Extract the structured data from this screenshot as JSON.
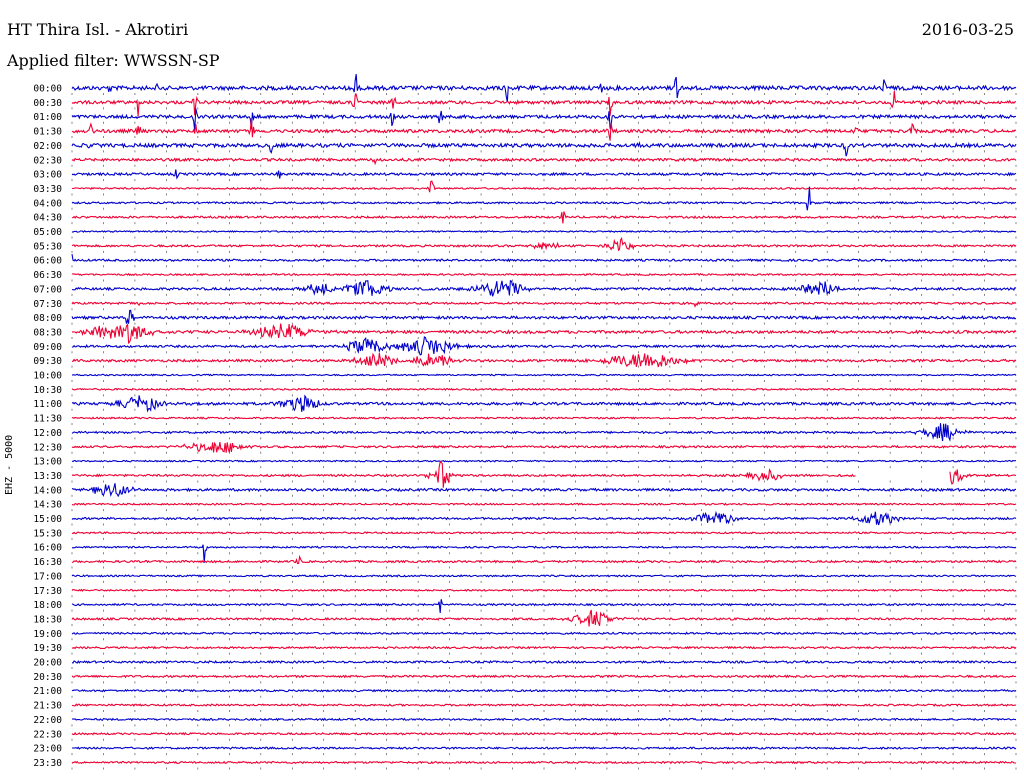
{
  "header": {
    "station": "HT Thira Isl. - Akrotiri",
    "date": "2016-03-25",
    "filter": "Applied filter: WWSSN-SP"
  },
  "axis": {
    "channel_label": "EHZ - 5000"
  },
  "colors": {
    "blue": "#0000cc",
    "red": "#ee0033",
    "tick": "#333333"
  },
  "chart_data": {
    "type": "line",
    "rows": [
      {
        "label": "00:00",
        "color": "blue",
        "noise": 2.0,
        "events": [
          {
            "x": 0.3,
            "amp": 14,
            "w": 0.002
          },
          {
            "x": 0.46,
            "amp": 15,
            "w": 0.002
          },
          {
            "x": 0.64,
            "amp": 17,
            "w": 0.002
          },
          {
            "x": 0.04,
            "amp": 5,
            "w": 0.002
          },
          {
            "x": 0.09,
            "amp": 5,
            "w": 0.002
          },
          {
            "x": 0.56,
            "amp": 6,
            "w": 0.002
          },
          {
            "x": 0.86,
            "amp": 6,
            "w": 0.002
          }
        ]
      },
      {
        "label": "00:30",
        "color": "red",
        "noise": 1.6,
        "events": [
          {
            "x": 0.07,
            "amp": 10,
            "w": 0.002
          },
          {
            "x": 0.13,
            "amp": 9,
            "w": 0.002
          },
          {
            "x": 0.3,
            "amp": 12,
            "w": 0.002
          },
          {
            "x": 0.34,
            "amp": 10,
            "w": 0.002
          },
          {
            "x": 0.57,
            "amp": 9,
            "w": 0.002
          },
          {
            "x": 0.87,
            "amp": 10,
            "w": 0.002
          }
        ]
      },
      {
        "label": "01:00",
        "color": "blue",
        "noise": 1.6,
        "events": [
          {
            "x": 0.13,
            "amp": 10,
            "w": 0.002
          },
          {
            "x": 0.19,
            "amp": 12,
            "w": 0.002
          },
          {
            "x": 0.34,
            "amp": 11,
            "w": 0.002
          },
          {
            "x": 0.39,
            "amp": 11,
            "w": 0.002
          },
          {
            "x": 0.57,
            "amp": 9,
            "w": 0.002
          }
        ]
      },
      {
        "label": "01:30",
        "color": "red",
        "noise": 1.6,
        "events": [
          {
            "x": 0.02,
            "amp": 7,
            "w": 0.002
          },
          {
            "x": 0.07,
            "amp": 8,
            "w": 0.002
          },
          {
            "x": 0.13,
            "amp": 8,
            "w": 0.002
          },
          {
            "x": 0.19,
            "amp": 10,
            "w": 0.002
          },
          {
            "x": 0.57,
            "amp": 9,
            "w": 0.002
          },
          {
            "x": 0.83,
            "amp": 9,
            "w": 0.002
          },
          {
            "x": 0.89,
            "amp": 7,
            "w": 0.002
          }
        ]
      },
      {
        "label": "02:00",
        "color": "blue",
        "noise": 1.8,
        "events": [
          {
            "x": 0.02,
            "amp": 9,
            "w": 0.002
          },
          {
            "x": 0.21,
            "amp": 9,
            "w": 0.002
          },
          {
            "x": 0.6,
            "amp": 5,
            "w": 0.002
          },
          {
            "x": 0.82,
            "amp": 8,
            "w": 0.002
          }
        ]
      },
      {
        "label": "02:30",
        "color": "red",
        "noise": 1.3,
        "events": [
          {
            "x": 0.32,
            "amp": 5,
            "w": 0.002
          }
        ]
      },
      {
        "label": "03:00",
        "color": "blue",
        "noise": 1.2,
        "events": [
          {
            "x": 0.11,
            "amp": 4,
            "w": 0.002
          },
          {
            "x": 0.22,
            "amp": 6,
            "w": 0.002
          }
        ]
      },
      {
        "label": "03:30",
        "color": "red",
        "noise": 0.8,
        "events": [
          {
            "x": 0.38,
            "amp": 6,
            "w": 0.003
          }
        ]
      },
      {
        "label": "04:00",
        "color": "blue",
        "noise": 0.9,
        "events": [
          {
            "x": 0.78,
            "amp": 16,
            "w": 0.002
          }
        ]
      },
      {
        "label": "04:30",
        "color": "red",
        "noise": 1.0,
        "events": [
          {
            "x": 0.52,
            "amp": 7,
            "w": 0.002
          }
        ]
      },
      {
        "label": "05:00",
        "color": "blue",
        "noise": 0.7,
        "events": []
      },
      {
        "label": "05:30",
        "color": "red",
        "noise": 1.0,
        "events": [
          {
            "x": 0.5,
            "amp": 3,
            "w": 0.015
          },
          {
            "x": 0.58,
            "amp": 7,
            "w": 0.012
          }
        ]
      },
      {
        "label": "06:00",
        "color": "blue",
        "noise": 1.0,
        "events": [
          {
            "x": 0.0,
            "amp": 5,
            "w": 0.002
          }
        ]
      },
      {
        "label": "06:30",
        "color": "red",
        "noise": 0.8,
        "events": []
      },
      {
        "label": "07:00",
        "color": "blue",
        "noise": 1.2,
        "events": [
          {
            "x": 0.26,
            "amp": 5,
            "w": 0.015
          },
          {
            "x": 0.31,
            "amp": 7,
            "w": 0.02
          },
          {
            "x": 0.45,
            "amp": 8,
            "w": 0.025
          },
          {
            "x": 0.79,
            "amp": 6,
            "w": 0.02
          }
        ]
      },
      {
        "label": "07:30",
        "color": "red",
        "noise": 1.0,
        "events": [
          {
            "x": 0.07,
            "amp": 6,
            "w": 0.002
          },
          {
            "x": 0.66,
            "amp": 4,
            "w": 0.002
          }
        ]
      },
      {
        "label": "08:00",
        "color": "blue",
        "noise": 1.3,
        "events": [
          {
            "x": 0.06,
            "amp": 12,
            "w": 0.004
          }
        ]
      },
      {
        "label": "08:30",
        "color": "red",
        "noise": 1.4,
        "events": [
          {
            "x": 0.03,
            "amp": 5,
            "w": 0.015
          },
          {
            "x": 0.06,
            "amp": 8,
            "w": 0.02
          },
          {
            "x": 0.22,
            "amp": 6,
            "w": 0.03
          }
        ]
      },
      {
        "label": "09:00",
        "color": "blue",
        "noise": 1.1,
        "events": [
          {
            "x": 0.31,
            "amp": 7,
            "w": 0.02
          },
          {
            "x": 0.37,
            "amp": 8,
            "w": 0.03
          }
        ]
      },
      {
        "label": "09:30",
        "color": "red",
        "noise": 1.2,
        "events": [
          {
            "x": 0.32,
            "amp": 6,
            "w": 0.02
          },
          {
            "x": 0.38,
            "amp": 7,
            "w": 0.02
          },
          {
            "x": 0.6,
            "amp": 7,
            "w": 0.04
          }
        ]
      },
      {
        "label": "10:00",
        "color": "blue",
        "noise": 0.7,
        "events": []
      },
      {
        "label": "10:30",
        "color": "red",
        "noise": 0.8,
        "events": []
      },
      {
        "label": "11:00",
        "color": "blue",
        "noise": 1.3,
        "events": [
          {
            "x": 0.07,
            "amp": 7,
            "w": 0.02
          },
          {
            "x": 0.24,
            "amp": 7,
            "w": 0.02
          }
        ]
      },
      {
        "label": "11:30",
        "color": "red",
        "noise": 0.8,
        "events": []
      },
      {
        "label": "12:00",
        "color": "blue",
        "noise": 1.0,
        "events": [
          {
            "x": 0.92,
            "amp": 7,
            "w": 0.02
          }
        ]
      },
      {
        "label": "12:30",
        "color": "red",
        "noise": 1.0,
        "events": [
          {
            "x": 0.15,
            "amp": 5,
            "w": 0.03
          }
        ]
      },
      {
        "label": "13:00",
        "color": "blue",
        "noise": 0.7,
        "events": []
      },
      {
        "label": "13:30",
        "color": "red",
        "noise": 1.0,
        "events": [
          {
            "x": 0.39,
            "amp": 10,
            "w": 0.01
          },
          {
            "x": 0.73,
            "amp": 5,
            "w": 0.02
          },
          {
            "x": 0.93,
            "amp": 6,
            "w": 0.015
          }
        ]
      },
      {
        "label": "14:00",
        "color": "blue",
        "noise": 1.2,
        "events": [
          {
            "x": 0.04,
            "amp": 6,
            "w": 0.02
          }
        ]
      },
      {
        "label": "14:30",
        "color": "red",
        "noise": 0.8,
        "events": []
      },
      {
        "label": "15:00",
        "color": "blue",
        "noise": 1.0,
        "events": [
          {
            "x": 0.68,
            "amp": 6,
            "w": 0.02
          },
          {
            "x": 0.85,
            "amp": 6,
            "w": 0.02
          }
        ]
      },
      {
        "label": "15:30",
        "color": "red",
        "noise": 0.8,
        "events": []
      },
      {
        "label": "16:00",
        "color": "blue",
        "noise": 0.8,
        "events": [
          {
            "x": 0.14,
            "amp": 14,
            "w": 0.002
          }
        ]
      },
      {
        "label": "16:30",
        "color": "red",
        "noise": 1.0,
        "events": [
          {
            "x": 0.24,
            "amp": 10,
            "w": 0.002
          }
        ]
      },
      {
        "label": "17:00",
        "color": "blue",
        "noise": 0.8,
        "events": []
      },
      {
        "label": "17:30",
        "color": "red",
        "noise": 0.8,
        "events": []
      },
      {
        "label": "18:00",
        "color": "blue",
        "noise": 0.9,
        "events": [
          {
            "x": 0.39,
            "amp": 6,
            "w": 0.002
          }
        ]
      },
      {
        "label": "18:30",
        "color": "red",
        "noise": 1.0,
        "events": [
          {
            "x": 0.55,
            "amp": 7,
            "w": 0.02
          }
        ]
      },
      {
        "label": "19:00",
        "color": "blue",
        "noise": 0.9,
        "events": []
      },
      {
        "label": "19:30",
        "color": "red",
        "noise": 0.9,
        "events": []
      },
      {
        "label": "20:00",
        "color": "blue",
        "noise": 1.0,
        "events": []
      },
      {
        "label": "20:30",
        "color": "red",
        "noise": 1.0,
        "events": []
      },
      {
        "label": "21:00",
        "color": "blue",
        "noise": 0.9,
        "events": []
      },
      {
        "label": "21:30",
        "color": "red",
        "noise": 0.9,
        "events": []
      },
      {
        "label": "22:00",
        "color": "blue",
        "noise": 0.9,
        "events": []
      },
      {
        "label": "22:30",
        "color": "red",
        "noise": 0.9,
        "events": []
      },
      {
        "label": "23:00",
        "color": "blue",
        "noise": 0.9,
        "events": []
      },
      {
        "label": "23:30",
        "color": "red",
        "noise": 0.9,
        "events": []
      }
    ],
    "gaps": [
      {
        "row": "13:30",
        "from": 0.83,
        "to": 0.93
      }
    ]
  }
}
